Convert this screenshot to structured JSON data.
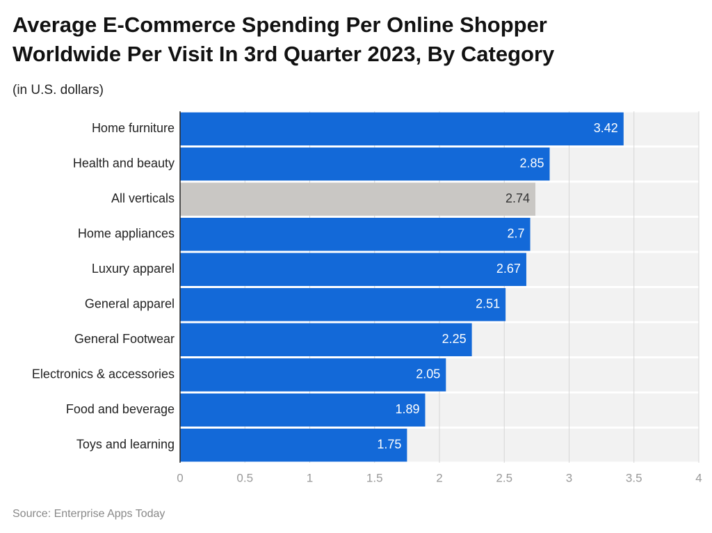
{
  "chart_data": {
    "type": "bar",
    "orientation": "horizontal",
    "title": [
      "Average E-Commerce Spending Per Online Shopper",
      "Worldwide Per Visit In 3rd Quarter 2023, By Category"
    ],
    "subtitle": "(in U.S. dollars)",
    "source": "Source: Enterprise Apps Today",
    "categories": [
      "Home furniture",
      "Health and beauty",
      "All verticals",
      "Home appliances",
      "Luxury apparel",
      "General apparel",
      "General Footwear",
      "Electronics & accessories",
      "Food and beverage",
      "Toys and learning"
    ],
    "values": [
      3.42,
      2.85,
      2.74,
      2.7,
      2.67,
      2.51,
      2.25,
      2.05,
      1.89,
      1.75
    ],
    "colors": [
      "#1369d8",
      "#1369d8",
      "#c9c7c4",
      "#1369d8",
      "#1369d8",
      "#1369d8",
      "#1369d8",
      "#1369d8",
      "#1369d8",
      "#1369d8"
    ],
    "xlim": [
      0,
      4
    ],
    "xticks": [
      0,
      0.5,
      1,
      1.5,
      2,
      2.5,
      3,
      3.5,
      4
    ],
    "grid": true
  }
}
